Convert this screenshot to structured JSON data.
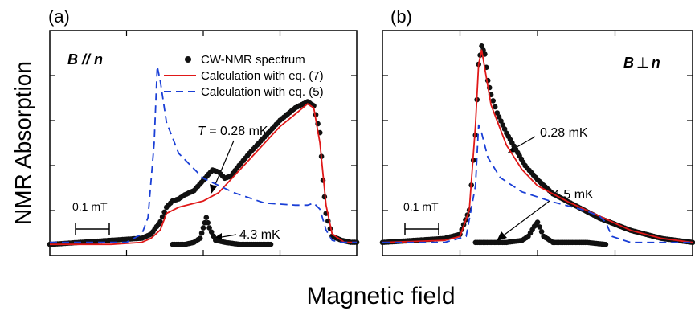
{
  "figure": {
    "ylabel": "NMR Absorption",
    "xlabel": "Magnetic field"
  },
  "chart_data": [
    {
      "type": "line",
      "panel_label": "(a)",
      "field_orientation": "B // n",
      "field_label": {
        "b": "B",
        "rel": " // ",
        "n": "n"
      },
      "xlim": [
        0,
        1
      ],
      "ylim": [
        0,
        1
      ],
      "ticks": "inward, unlabeled",
      "grid": false,
      "legend": {
        "position": "top-right",
        "entries": [
          "CW-NMR spectrum",
          "Calculation with eq. (7)",
          "Calculation with eq. (5)"
        ]
      },
      "scale_bar": {
        "label": "0.1 mT"
      },
      "annotations": [
        {
          "prefix": "T",
          "text": " = 0.28 mK"
        },
        {
          "text": "4.3 mK"
        }
      ],
      "series": [
        {
          "name": "CW-NMR spectrum",
          "style": "dots",
          "color": "#111111",
          "x": [
            0.0,
            0.1,
            0.2,
            0.3,
            0.33,
            0.36,
            0.38,
            0.4,
            0.42,
            0.44,
            0.47,
            0.5,
            0.53,
            0.55,
            0.57,
            0.59,
            0.61,
            0.65,
            0.7,
            0.75,
            0.8,
            0.84,
            0.86,
            0.88,
            0.89,
            0.9,
            0.92,
            0.95,
            0.98,
            1.0
          ],
          "y": [
            0.01,
            0.02,
            0.03,
            0.04,
            0.06,
            0.12,
            0.19,
            0.22,
            0.23,
            0.25,
            0.27,
            0.32,
            0.37,
            0.36,
            0.33,
            0.34,
            0.38,
            0.45,
            0.53,
            0.61,
            0.67,
            0.7,
            0.68,
            0.55,
            0.32,
            0.16,
            0.05,
            0.03,
            0.02,
            0.02
          ]
        },
        {
          "name": "CW-NMR spectrum (4.3 mK)",
          "style": "dots",
          "color": "#111111",
          "x": [
            0.4,
            0.44,
            0.47,
            0.49,
            0.5,
            0.51,
            0.52,
            0.54,
            0.57,
            0.62,
            0.67,
            0.72
          ],
          "y": [
            0.01,
            0.01,
            0.02,
            0.04,
            0.09,
            0.14,
            0.09,
            0.03,
            0.02,
            0.01,
            0.01,
            0.01
          ]
        },
        {
          "name": "Calculation with eq. (7)",
          "style": "solid",
          "color": "#e01818",
          "x": [
            0.0,
            0.2,
            0.3,
            0.33,
            0.36,
            0.38,
            0.42,
            0.5,
            0.55,
            0.6,
            0.65,
            0.7,
            0.75,
            0.8,
            0.84,
            0.86,
            0.88,
            0.9,
            0.92,
            0.96,
            1.0
          ],
          "y": [
            0.01,
            0.01,
            0.02,
            0.04,
            0.08,
            0.16,
            0.19,
            0.22,
            0.26,
            0.34,
            0.42,
            0.5,
            0.58,
            0.64,
            0.69,
            0.67,
            0.5,
            0.2,
            0.06,
            0.02,
            0.02
          ]
        },
        {
          "name": "Calculation with eq. (5)",
          "style": "dashed",
          "color": "#1a3fd6",
          "x": [
            0.0,
            0.25,
            0.3,
            0.32,
            0.34,
            0.35,
            0.36,
            0.38,
            0.42,
            0.5,
            0.6,
            0.7,
            0.8,
            0.84,
            0.86,
            0.88,
            0.9,
            0.92,
            0.95,
            1.0
          ],
          "y": [
            0.02,
            0.02,
            0.06,
            0.14,
            0.5,
            0.87,
            0.8,
            0.6,
            0.45,
            0.33,
            0.26,
            0.21,
            0.2,
            0.2,
            0.21,
            0.18,
            0.08,
            0.03,
            0.02,
            0.02
          ]
        }
      ]
    },
    {
      "type": "line",
      "panel_label": "(b)",
      "field_orientation": "B ⊥ n",
      "field_label": {
        "b": "B",
        "rel": "⊥",
        "n": "n"
      },
      "xlim": [
        0,
        1
      ],
      "ylim": [
        0,
        1
      ],
      "ticks": "inward, unlabeled",
      "grid": false,
      "scale_bar": {
        "label": "0.1 mT"
      },
      "annotations": [
        {
          "text": "0.28 mK"
        },
        {
          "text": "4.5 mK"
        }
      ],
      "series": [
        {
          "name": "CW-NMR spectrum",
          "style": "dots",
          "color": "#111111",
          "x": [
            0.0,
            0.1,
            0.2,
            0.25,
            0.28,
            0.3,
            0.31,
            0.32,
            0.33,
            0.34,
            0.35,
            0.37,
            0.4,
            0.43,
            0.46,
            0.5,
            0.55,
            0.6,
            0.7,
            0.8,
            0.9,
            1.0
          ],
          "y": [
            0.02,
            0.03,
            0.04,
            0.06,
            0.18,
            0.55,
            0.9,
            0.99,
            0.95,
            0.82,
            0.75,
            0.66,
            0.56,
            0.48,
            0.4,
            0.33,
            0.26,
            0.22,
            0.14,
            0.08,
            0.04,
            0.02
          ]
        },
        {
          "name": "CW-NMR spectrum (4.5 mK)",
          "style": "dots",
          "color": "#111111",
          "x": [
            0.3,
            0.35,
            0.4,
            0.45,
            0.47,
            0.49,
            0.5,
            0.52,
            0.55,
            0.6,
            0.66,
            0.72
          ],
          "y": [
            0.02,
            0.02,
            0.02,
            0.03,
            0.05,
            0.1,
            0.12,
            0.05,
            0.02,
            0.02,
            0.02,
            0.01
          ]
        },
        {
          "name": "Calculation with eq. (7)",
          "style": "solid",
          "color": "#e01818",
          "x": [
            0.0,
            0.2,
            0.25,
            0.28,
            0.3,
            0.31,
            0.32,
            0.33,
            0.35,
            0.4,
            0.45,
            0.5,
            0.6,
            0.7,
            0.8,
            0.9,
            1.0
          ],
          "y": [
            0.02,
            0.03,
            0.05,
            0.18,
            0.6,
            0.9,
            0.97,
            0.88,
            0.7,
            0.5,
            0.38,
            0.3,
            0.22,
            0.15,
            0.08,
            0.04,
            0.02
          ]
        },
        {
          "name": "Calculation with eq. (5)",
          "style": "dashed",
          "color": "#1a3fd6",
          "x": [
            0.0,
            0.2,
            0.27,
            0.3,
            0.31,
            0.32,
            0.34,
            0.38,
            0.45,
            0.55,
            0.65,
            0.7,
            0.72,
            0.74,
            0.8,
            0.9,
            1.0
          ],
          "y": [
            0.02,
            0.02,
            0.05,
            0.3,
            0.6,
            0.56,
            0.44,
            0.34,
            0.27,
            0.22,
            0.18,
            0.15,
            0.12,
            0.05,
            0.02,
            0.02,
            0.02
          ]
        }
      ]
    }
  ]
}
